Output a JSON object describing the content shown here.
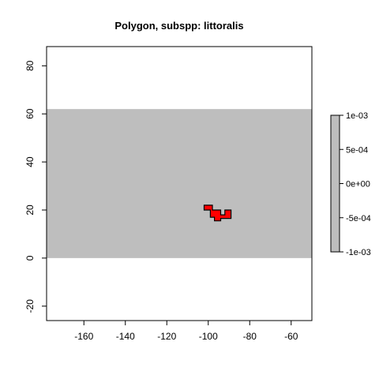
{
  "chart_data": {
    "type": "raster-map",
    "title": "Polygon, subspp: littoralis",
    "xlabel": "",
    "ylabel": "",
    "xlim": [
      -178,
      -50
    ],
    "ylim": [
      -26,
      88
    ],
    "x_ticks": [
      -160,
      -140,
      -120,
      -100,
      -80,
      -60
    ],
    "y_ticks": [
      -20,
      0,
      20,
      40,
      60,
      80
    ],
    "x_tick_labels": [
      "-160",
      "-140",
      "-120",
      "-100",
      "-80",
      "-60"
    ],
    "y_tick_labels": [
      "-20",
      "0",
      "20",
      "40",
      "60",
      "80"
    ],
    "raster": {
      "xmin": -178,
      "xmax": -50,
      "ymin": 0,
      "ymax": 62,
      "value": 0,
      "color": "#bebebe"
    },
    "polygon": {
      "fill": "#ff0000",
      "stroke": "#000000",
      "coordinates": [
        [
          -102,
          22
        ],
        [
          -98,
          22
        ],
        [
          -98,
          20
        ],
        [
          -94,
          20
        ],
        [
          -94,
          18
        ],
        [
          -92,
          18
        ],
        [
          -92,
          20
        ],
        [
          -89,
          20
        ],
        [
          -89,
          16.5
        ],
        [
          -94,
          16.5
        ],
        [
          -94,
          15.5
        ],
        [
          -97,
          15.5
        ],
        [
          -97,
          17
        ],
        [
          -99,
          17
        ],
        [
          -99,
          20
        ],
        [
          -102,
          20
        ]
      ]
    },
    "legend": {
      "placement": "right",
      "color": "#bebebe",
      "values": [
        0.001,
        0.0005,
        0,
        -0.0005,
        -0.001
      ],
      "labels": [
        "1e-03",
        "5e-04",
        "0e+00",
        "-5e-04",
        "-1e-03"
      ]
    }
  }
}
